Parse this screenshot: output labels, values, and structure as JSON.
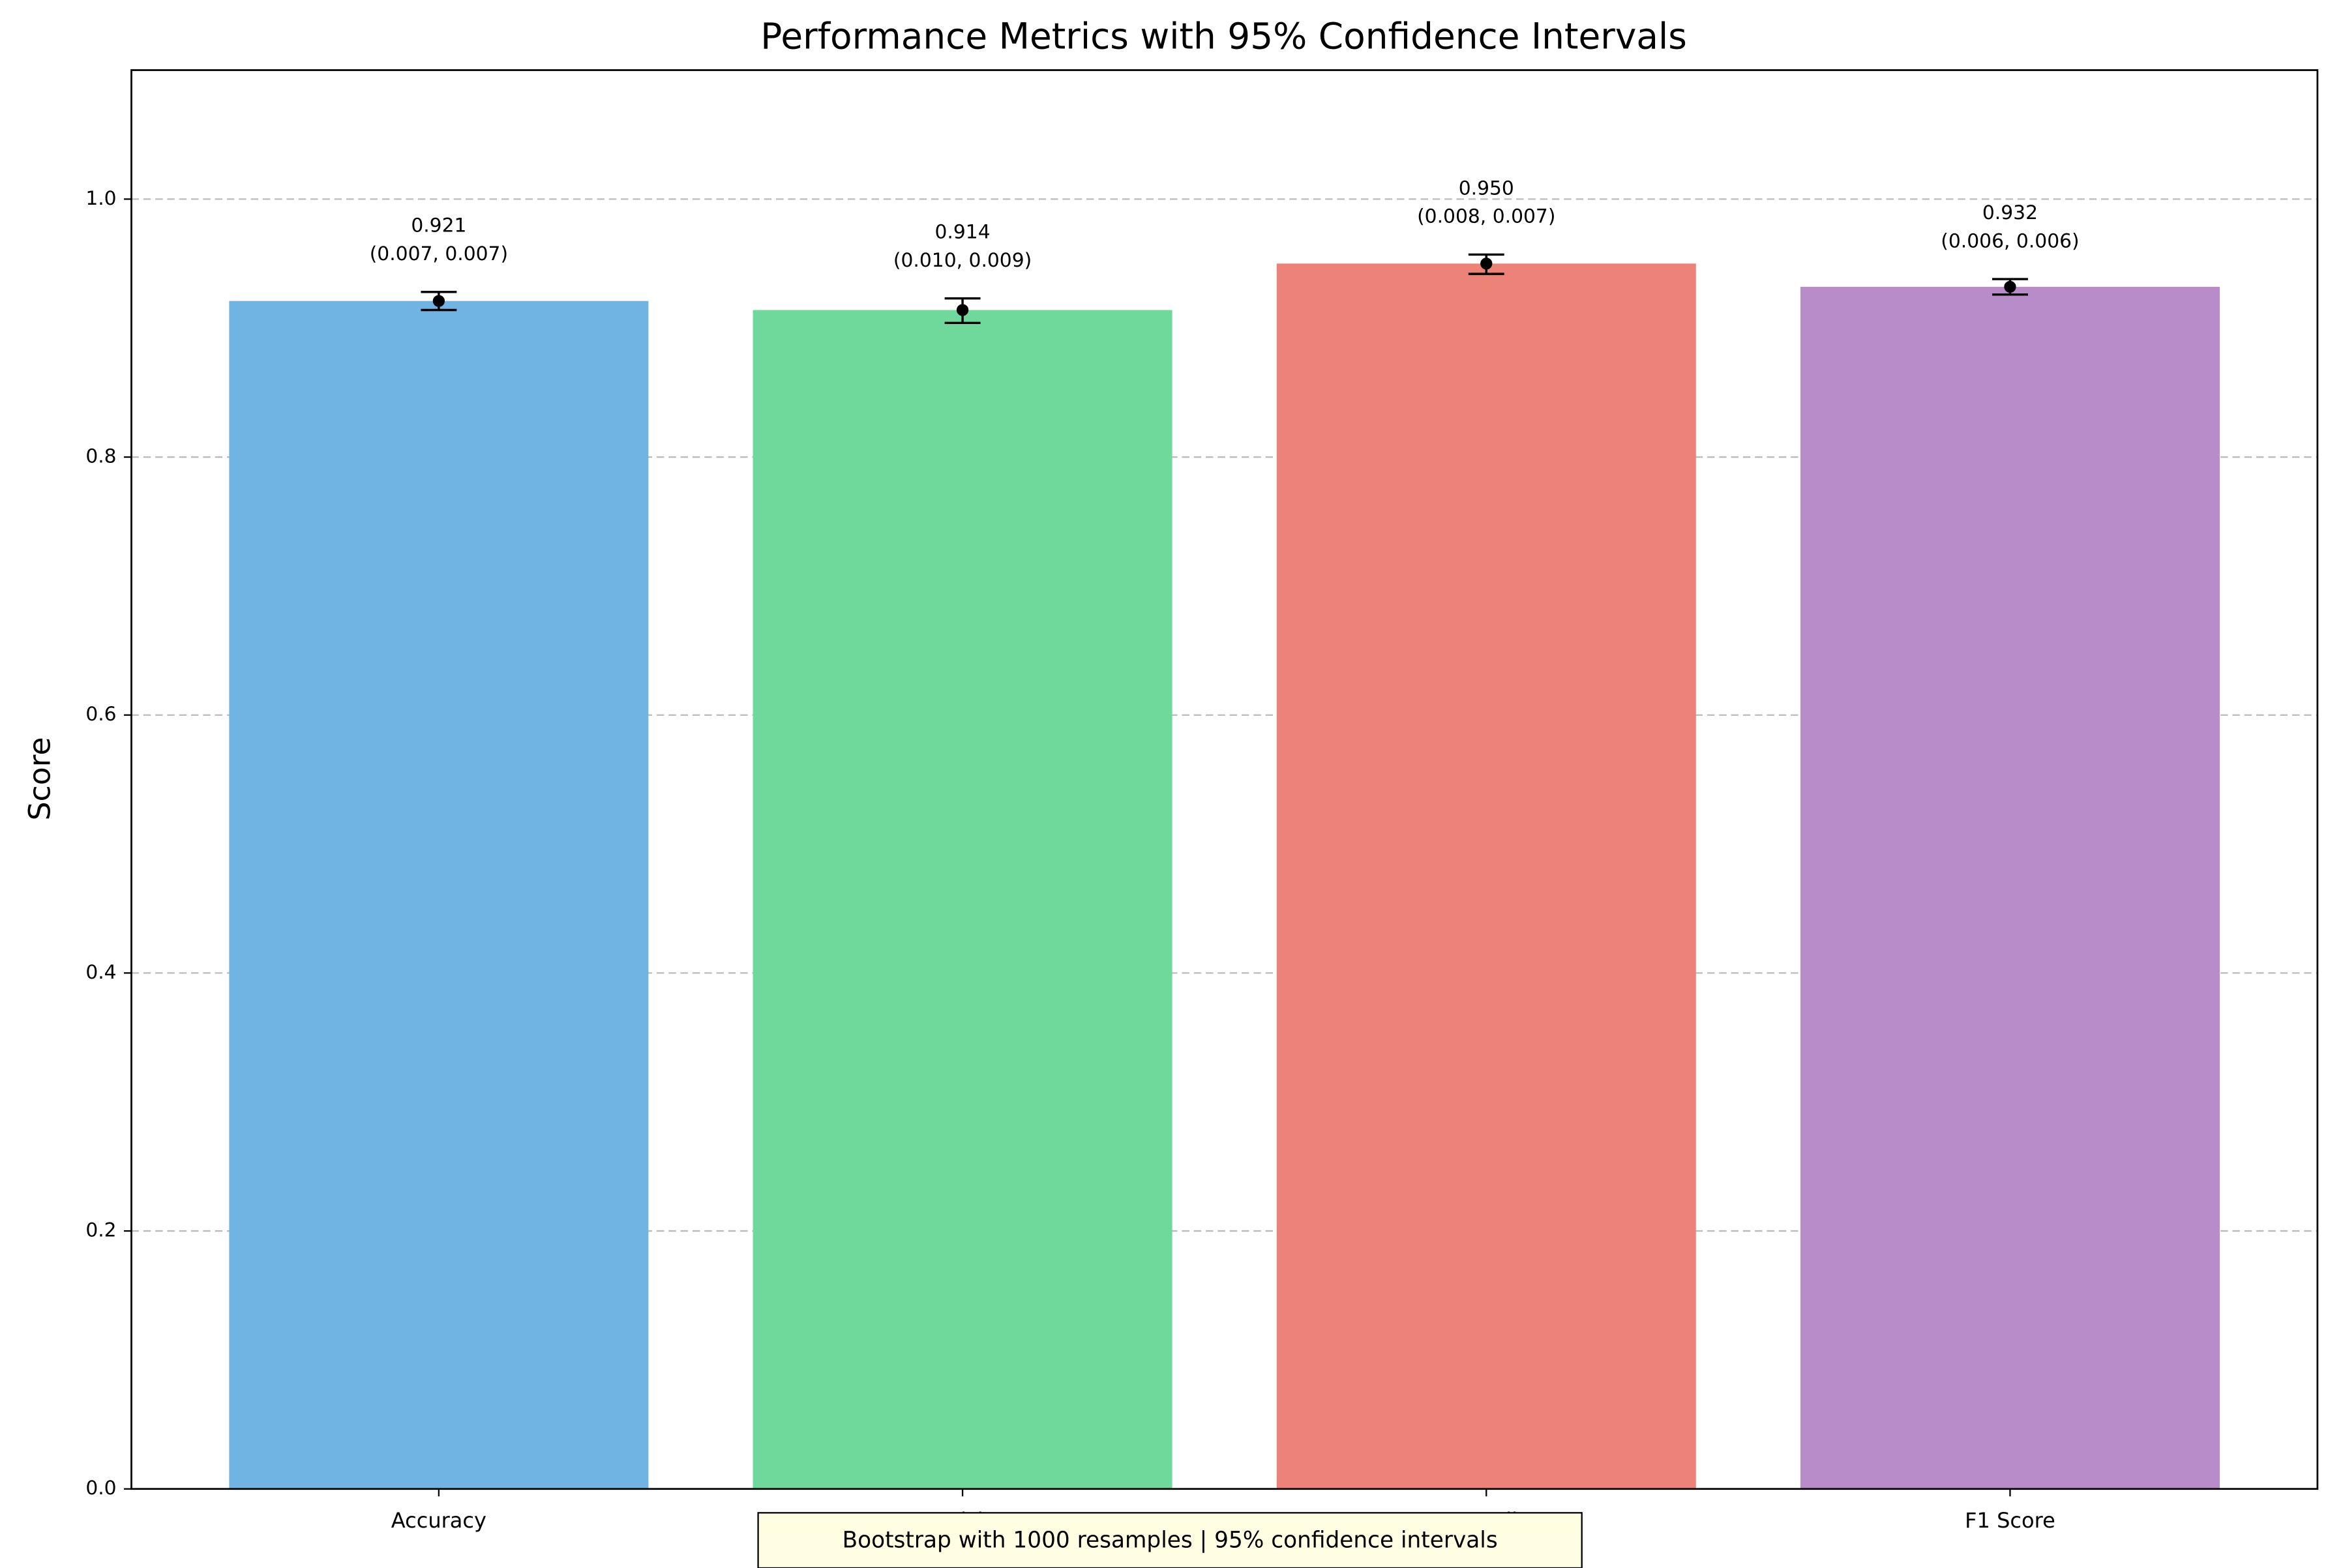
{
  "chart_data": {
    "type": "bar",
    "title": "Performance Metrics with 95% Confidence Intervals",
    "y_label": "Score",
    "categories": [
      "Accuracy",
      "Precision",
      "Recall",
      "F1 Score"
    ],
    "values": [
      0.921,
      0.914,
      0.95,
      0.932
    ],
    "value_labels": [
      "0.921",
      "0.914",
      "0.950",
      "0.932"
    ],
    "errors_lower": [
      0.007,
      0.01,
      0.008,
      0.006
    ],
    "errors_upper": [
      0.007,
      0.009,
      0.007,
      0.006
    ],
    "error_labels": [
      "(0.007, 0.007)",
      "(0.010, 0.009)",
      "(0.008, 0.007)",
      "(0.006, 0.006)"
    ],
    "colors": [
      "#6fb4e2",
      "#6fd99b",
      "#ed8278",
      "#b88bc9"
    ],
    "ylim": [
      0,
      1.1
    ],
    "yticks": [
      {
        "value": 0,
        "label": "0.0"
      },
      0.2,
      0.4,
      0.6,
      0.8,
      {
        "value": 1,
        "label": "1.0"
      }
    ],
    "grid": true,
    "annotation": "Bootstrap with 1000 resamples | 95% confidence intervals"
  }
}
